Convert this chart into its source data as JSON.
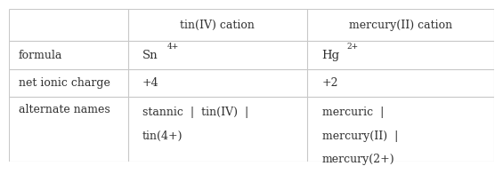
{
  "col_headers": [
    "tin(IV) cation",
    "mercury(II) cation"
  ],
  "row_labels": [
    "formula",
    "net ionic charge",
    "alternate names"
  ],
  "formula_sn_base": "Sn",
  "formula_sn_sup": "4+",
  "formula_hg_base": "Hg",
  "formula_hg_sup": "2+",
  "charge_row": [
    "+4",
    "+2"
  ],
  "names_col1_line1": "stannic  |  tin(IV)  |",
  "names_col1_line2": "tin(4+)",
  "names_col2_line1": "mercuric  |",
  "names_col2_line2": "mercury(II)  |",
  "names_col2_line3": "mercury(2+)",
  "col_bounds": [
    0.0,
    0.245,
    0.615,
    1.0
  ],
  "row_tops": [
    1.0,
    0.79,
    0.605,
    0.42,
    0.0
  ],
  "bg_color": "#ffffff",
  "line_color": "#c8c8c8",
  "text_color": "#303030",
  "font_size": 9.0,
  "font_family": "DejaVu Serif"
}
